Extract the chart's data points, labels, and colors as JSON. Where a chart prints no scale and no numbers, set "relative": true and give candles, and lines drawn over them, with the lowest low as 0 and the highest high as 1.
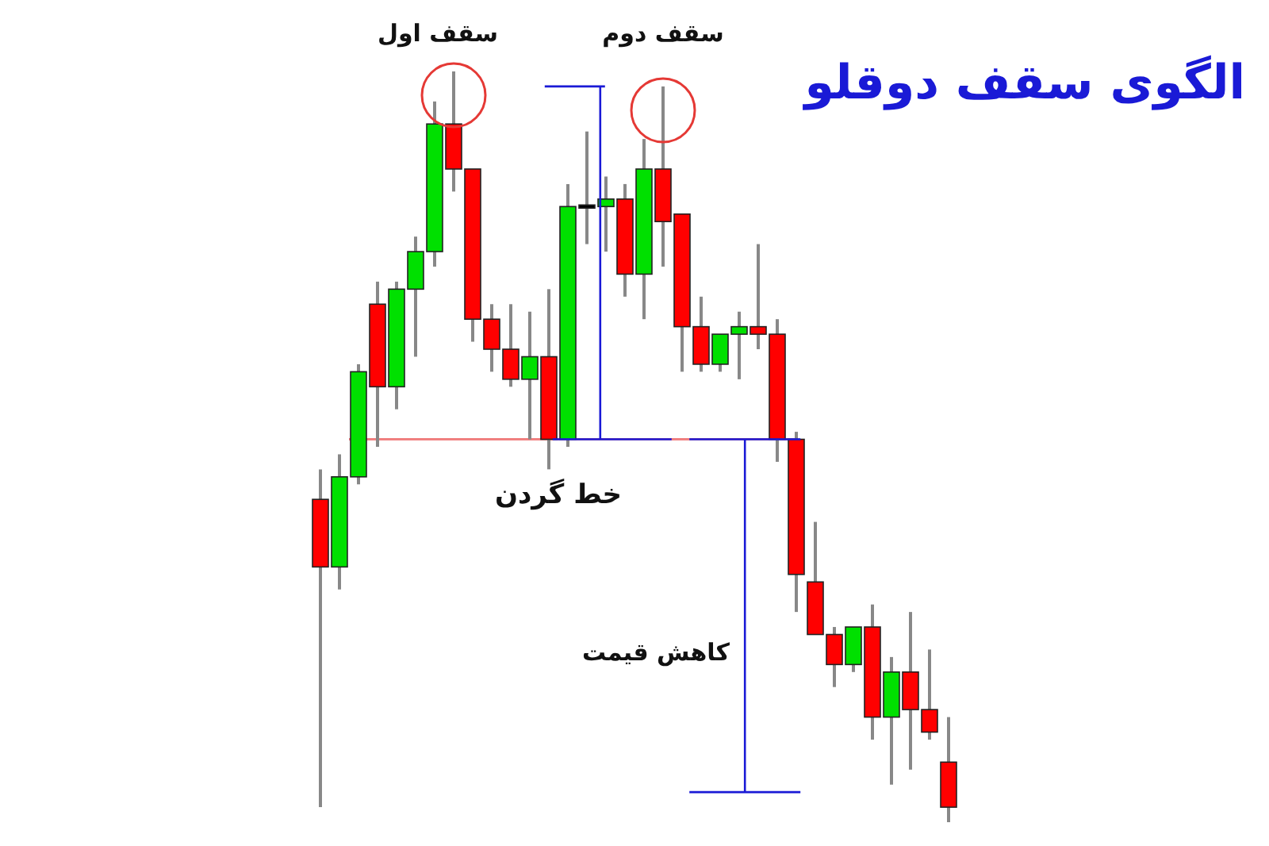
{
  "chart_data": {
    "type": "candlestick",
    "relative": true,
    "title": "الگوی سقف دوقلو",
    "categories": [
      null,
      null,
      null,
      null,
      null,
      null,
      null,
      null,
      null,
      null,
      null,
      null,
      null,
      null,
      null,
      null,
      null,
      null,
      null,
      null,
      null,
      null,
      null,
      null,
      null,
      null,
      null,
      null,
      null,
      null,
      null,
      null,
      null,
      null
    ],
    "ohlc": [
      [
        0.43,
        0.47,
        0.02,
        0.34
      ],
      [
        0.34,
        0.49,
        0.31,
        0.46
      ],
      [
        0.46,
        0.61,
        0.45,
        0.6
      ],
      [
        0.69,
        0.72,
        0.5,
        0.58
      ],
      [
        0.58,
        0.72,
        0.55,
        0.71
      ],
      [
        0.71,
        0.78,
        0.62,
        0.76
      ],
      [
        0.76,
        0.96,
        0.74,
        0.93
      ],
      [
        0.93,
        1,
        0.84,
        0.87
      ],
      [
        0.87,
        0.87,
        0.64,
        0.67
      ],
      [
        0.67,
        0.69,
        0.6,
        0.63
      ],
      [
        0.63,
        0.69,
        0.58,
        0.59
      ],
      [
        0.59,
        0.68,
        0.51,
        0.62
      ],
      [
        0.62,
        0.71,
        0.47,
        0.51
      ],
      [
        0.51,
        0.85,
        0.5,
        0.82
      ],
      [
        0.82,
        0.92,
        0.77,
        0.82
      ],
      [
        0.82,
        0.86,
        0.76,
        0.83
      ],
      [
        0.83,
        0.85,
        0.7,
        0.73
      ],
      [
        0.73,
        0.91,
        0.67,
        0.87
      ],
      [
        0.87,
        0.98,
        0.74,
        0.8
      ],
      [
        0.81,
        0.81,
        0.6,
        0.66
      ],
      [
        0.66,
        0.7,
        0.6,
        0.61
      ],
      [
        0.61,
        0.65,
        0.6,
        0.65
      ],
      [
        0.65,
        0.68,
        0.59,
        0.66
      ],
      [
        0.66,
        0.77,
        0.63,
        0.65
      ],
      [
        0.65,
        0.67,
        0.48,
        0.51
      ],
      [
        0.51,
        0.52,
        0.28,
        0.33
      ],
      [
        0.32,
        0.4,
        0.25,
        0.25
      ],
      [
        0.25,
        0.26,
        0.18,
        0.21
      ],
      [
        0.21,
        0.26,
        0.2,
        0.26
      ],
      [
        0.26,
        0.29,
        0.11,
        0.14
      ],
      [
        0.14,
        0.22,
        0.05,
        0.2
      ],
      [
        0.2,
        0.28,
        0.07,
        0.15
      ],
      [
        0.15,
        0.23,
        0.11,
        0.12
      ],
      [
        0.08,
        0.14,
        0,
        0.02
      ]
    ],
    "colors": [
      "#ff0000",
      "#00e000",
      "#00e000",
      "#ff0000",
      "#00e000",
      "#00e000",
      "#00e000",
      "#ff0000",
      "#ff0000",
      "#ff0000",
      "#ff0000",
      "#00e000",
      "#ff0000",
      "#00e000",
      "#000000",
      "#00e000",
      "#ff0000",
      "#00e000",
      "#ff0000",
      "#ff0000",
      "#ff0000",
      "#00e000",
      "#00e000",
      "#ff0000",
      "#ff0000",
      "#ff0000",
      "#ff0000",
      "#ff0000",
      "#00e000",
      "#ff0000",
      "#00e000",
      "#ff0000",
      "#ff0000",
      "#ff0000"
    ],
    "ref_lines": [
      {
        "axis": "y",
        "value": 0.51,
        "label": "خط گردن",
        "color": "#f08080"
      }
    ],
    "annotations": [
      "سقف اول",
      "سقف دوم",
      "کاهش قیمت"
    ]
  }
}
